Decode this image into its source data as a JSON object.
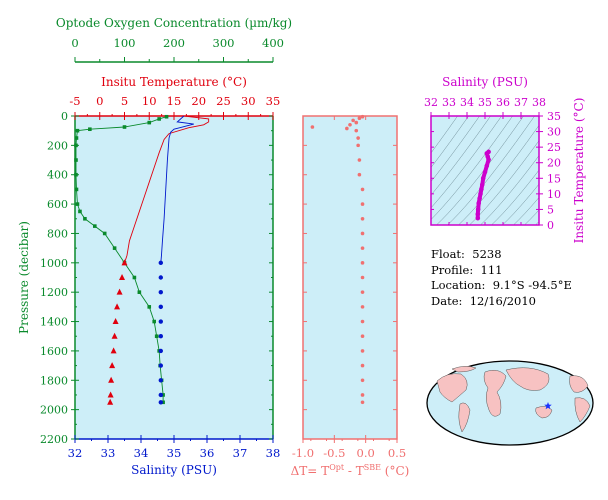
{
  "colors": {
    "oxygen": "#0a8a2c",
    "temperature": "#e0000e",
    "salinity": "#0018cc",
    "delta": "#f07070",
    "ts": "#cc00cc",
    "plot_bg": "#cdeef8"
  },
  "float_info": {
    "float_label": "Float:",
    "float_value": "5238",
    "profile_label": "Profile:",
    "profile_value": "111",
    "location_label": "Location:",
    "location_value": "9.1°S  -94.5°E",
    "date_label": "Date:",
    "date_value": "12/16/2010"
  },
  "map": {
    "marker_icon": "star-icon",
    "marker_color": "#1a33ff"
  },
  "chart_data": [
    {
      "type": "line",
      "name": "profile-panel",
      "ylabel": "Pressure (decibar)",
      "ylim": [
        2200,
        0
      ],
      "yticks": [
        0,
        200,
        400,
        600,
        800,
        1000,
        1200,
        1400,
        1600,
        1800,
        2000,
        2200
      ],
      "axes": {
        "oxygen": {
          "label": "Optode Oxygen Concentration (µm/kg)",
          "range": [
            0,
            400
          ],
          "ticks": [
            0,
            100,
            200,
            300,
            400
          ]
        },
        "temperature": {
          "label": "Insitu Temperature (°C)",
          "range": [
            -5,
            35
          ],
          "ticks": [
            -5,
            0,
            5,
            10,
            15,
            20,
            25,
            30,
            35
          ]
        },
        "salinity": {
          "label": "Salinity (PSU)",
          "range": [
            32,
            38
          ],
          "ticks": [
            32,
            33,
            34,
            35,
            36,
            37,
            38
          ]
        }
      },
      "series": [
        {
          "key": "oxygen",
          "style": "line+points",
          "points": [
            [
              185,
              5
            ],
            [
              170,
              20
            ],
            [
              150,
              45
            ],
            [
              100,
              75
            ],
            [
              30,
              90
            ],
            [
              5,
              100
            ],
            [
              3,
              150
            ],
            [
              2,
              200
            ],
            [
              2,
              300
            ],
            [
              2,
              400
            ],
            [
              3,
              500
            ],
            [
              5,
              600
            ],
            [
              10,
              650
            ],
            [
              20,
              700
            ],
            [
              40,
              750
            ],
            [
              60,
              800
            ],
            [
              80,
              900
            ],
            [
              100,
              1000
            ],
            [
              120,
              1100
            ],
            [
              130,
              1200
            ],
            [
              150,
              1300
            ],
            [
              160,
              1400
            ],
            [
              165,
              1500
            ],
            [
              170,
              1600
            ],
            [
              172,
              1700
            ],
            [
              175,
              1800
            ],
            [
              178,
              1900
            ],
            [
              178,
              1950
            ]
          ]
        },
        {
          "key": "temperature",
          "style": "line",
          "points": [
            [
              17,
              0
            ],
            [
              22,
              20
            ],
            [
              22,
              40
            ],
            [
              21,
              60
            ],
            [
              18,
              80
            ],
            [
              14,
              120
            ],
            [
              13,
              160
            ],
            [
              12,
              250
            ],
            [
              11,
              350
            ],
            [
              10,
              450
            ],
            [
              9,
              550
            ],
            [
              8,
              650
            ],
            [
              7,
              750
            ],
            [
              6,
              850
            ],
            [
              5.5,
              950
            ],
            [
              5,
              1000
            ]
          ]
        },
        {
          "key": "temperature",
          "style": "points",
          "points": [
            [
              5,
              1000
            ],
            [
              4.5,
              1100
            ],
            [
              4,
              1200
            ],
            [
              3.5,
              1300
            ],
            [
              3.2,
              1400
            ],
            [
              3,
              1500
            ],
            [
              2.8,
              1600
            ],
            [
              2.5,
              1700
            ],
            [
              2.3,
              1800
            ],
            [
              2.2,
              1900
            ],
            [
              2.1,
              1950
            ]
          ]
        },
        {
          "key": "salinity",
          "style": "line",
          "points": [
            [
              35.3,
              0
            ],
            [
              35.1,
              40
            ],
            [
              35.6,
              55
            ],
            [
              35.0,
              90
            ],
            [
              34.9,
              110
            ],
            [
              34.85,
              150
            ],
            [
              34.8,
              300
            ],
            [
              34.75,
              500
            ],
            [
              34.7,
              700
            ],
            [
              34.65,
              850
            ],
            [
              34.62,
              950
            ],
            [
              34.6,
              1000
            ]
          ]
        },
        {
          "key": "salinity",
          "style": "points",
          "points": [
            [
              34.6,
              1000
            ],
            [
              34.6,
              1100
            ],
            [
              34.6,
              1200
            ],
            [
              34.6,
              1300
            ],
            [
              34.6,
              1400
            ],
            [
              34.6,
              1500
            ],
            [
              34.6,
              1600
            ],
            [
              34.6,
              1700
            ],
            [
              34.6,
              1800
            ],
            [
              34.6,
              1900
            ],
            [
              34.6,
              1950
            ]
          ]
        }
      ]
    },
    {
      "type": "scatter",
      "name": "delta-t-panel",
      "xlabel": "ΔT= T",
      "xlabel_sup1": "Opt",
      "xlabel_mid": " - T",
      "xlabel_sup2": "SBE",
      "xlabel_end": " (°C)",
      "xlim": [
        -1.0,
        0.5
      ],
      "xticks": [
        -1.0,
        -0.5,
        0.0,
        0.5
      ],
      "xtick_labels": [
        "-1.0",
        "-0.5",
        "0.0",
        "0.5"
      ],
      "ylim": [
        2200,
        0
      ],
      "points": [
        [
          -0.05,
          5
        ],
        [
          -0.1,
          15
        ],
        [
          -0.2,
          30
        ],
        [
          -0.15,
          45
        ],
        [
          -0.25,
          60
        ],
        [
          -0.85,
          75
        ],
        [
          -0.3,
          85
        ],
        [
          -0.15,
          100
        ],
        [
          -0.12,
          150
        ],
        [
          -0.12,
          200
        ],
        [
          -0.1,
          300
        ],
        [
          -0.1,
          400
        ],
        [
          -0.05,
          500
        ],
        [
          -0.05,
          600
        ],
        [
          -0.05,
          700
        ],
        [
          -0.05,
          800
        ],
        [
          -0.05,
          900
        ],
        [
          -0.05,
          1000
        ],
        [
          -0.05,
          1100
        ],
        [
          -0.05,
          1200
        ],
        [
          -0.05,
          1300
        ],
        [
          -0.05,
          1400
        ],
        [
          -0.05,
          1500
        ],
        [
          -0.05,
          1600
        ],
        [
          -0.05,
          1700
        ],
        [
          -0.05,
          1800
        ],
        [
          -0.05,
          1900
        ],
        [
          -0.05,
          1950
        ]
      ]
    },
    {
      "type": "scatter",
      "name": "ts-diagram",
      "xlabel": "Salinity (PSU)",
      "ylabel": "Insitu Temperature (°C)",
      "xlim": [
        32,
        38
      ],
      "ylim": [
        0,
        35
      ],
      "xticks": [
        32,
        33,
        34,
        35,
        36,
        37,
        38
      ],
      "yticks": [
        0,
        5,
        10,
        15,
        20,
        25,
        30,
        35
      ],
      "points": [
        [
          34.6,
          2.2
        ],
        [
          34.6,
          3.5
        ],
        [
          34.62,
          5
        ],
        [
          34.65,
          7
        ],
        [
          34.7,
          8.5
        ],
        [
          34.75,
          10
        ],
        [
          34.8,
          11.5
        ],
        [
          34.85,
          13
        ],
        [
          34.9,
          15
        ],
        [
          35.0,
          17
        ],
        [
          35.1,
          19
        ],
        [
          35.2,
          21
        ],
        [
          35.15,
          22
        ],
        [
          35.1,
          23
        ],
        [
          35.2,
          23.5
        ]
      ]
    }
  ]
}
